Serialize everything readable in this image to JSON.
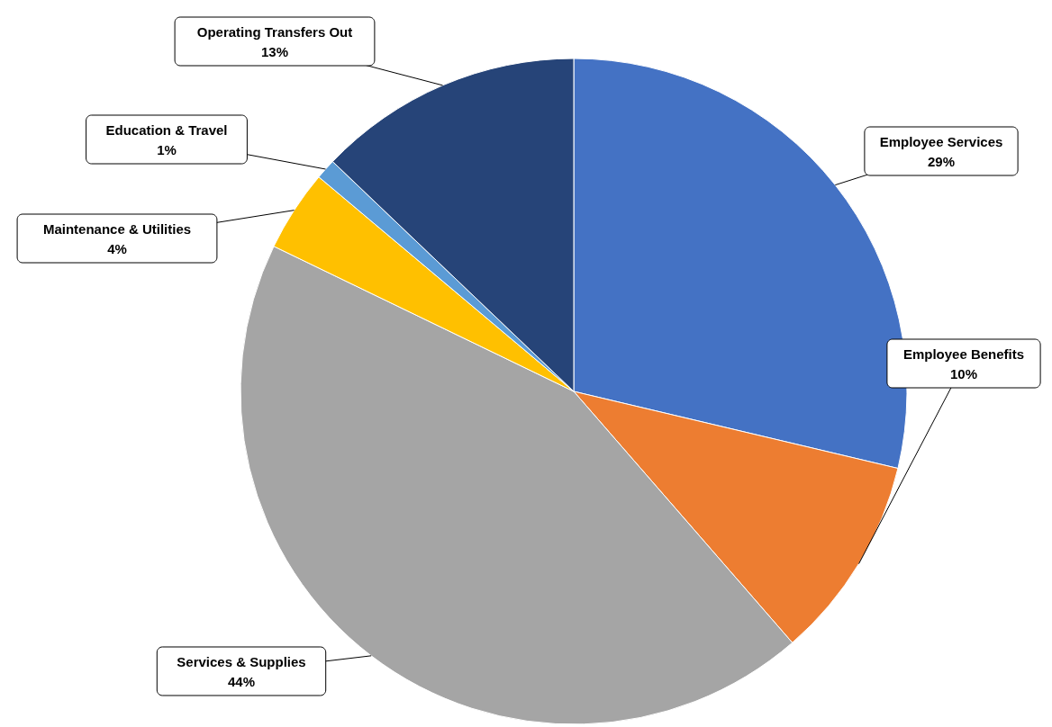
{
  "chart_data": {
    "type": "pie",
    "categories": [
      "Employee Services",
      "Employee Benefits",
      "Services & Supplies",
      "Maintenance & Utilities",
      "Education & Travel",
      "Operating Transfers Out"
    ],
    "values": [
      29,
      10,
      44,
      4,
      1,
      13
    ],
    "value_labels": [
      "29%",
      "10%",
      "44%",
      "4%",
      "1%",
      "13%"
    ],
    "colors": [
      "#4472c4",
      "#ed7d31",
      "#a5a5a5",
      "#ffc000",
      "#5b9bd5",
      "#264478"
    ]
  }
}
